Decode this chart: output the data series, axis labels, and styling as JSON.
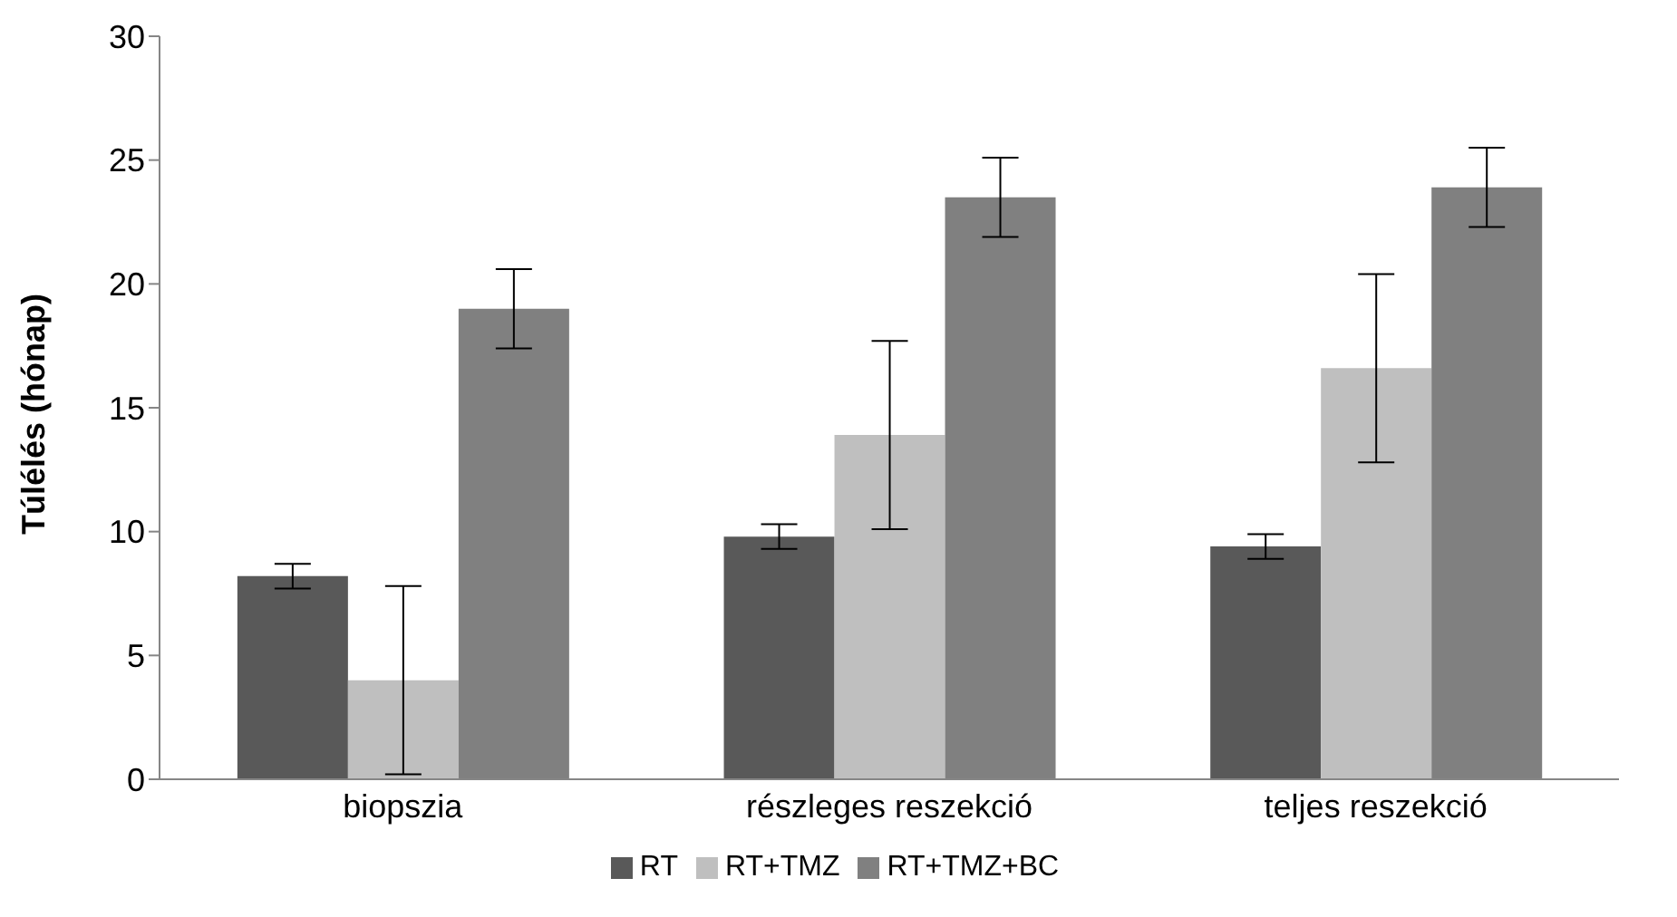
{
  "chart_data": {
    "type": "bar",
    "ylabel": "Túlélés (hónap)",
    "categories": [
      "biopszia",
      "részleges reszekció",
      "teljes reszekció"
    ],
    "series": [
      {
        "name": "RT",
        "color": "#595959",
        "values": [
          8.2,
          9.8,
          9.4
        ],
        "errors": [
          0.5,
          0.5,
          0.5
        ]
      },
      {
        "name": "RT+TMZ",
        "color": "#bfbfbf",
        "values": [
          4.0,
          13.9,
          16.6
        ],
        "errors": [
          3.8,
          3.8,
          3.8
        ]
      },
      {
        "name": "RT+TMZ+BC",
        "color": "#808080",
        "values": [
          19.0,
          23.5,
          23.9
        ],
        "errors": [
          1.6,
          1.6,
          1.6
        ]
      }
    ],
    "ylim": [
      0,
      30
    ],
    "yticks": [
      0,
      5,
      10,
      15,
      20,
      25,
      30
    ],
    "grid": false,
    "legend": "bottom"
  }
}
